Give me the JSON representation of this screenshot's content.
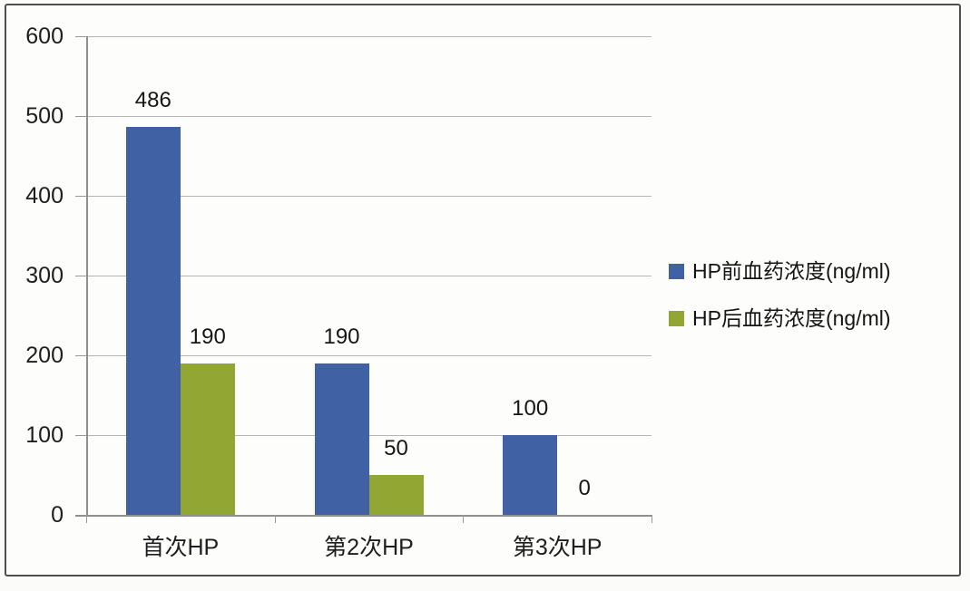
{
  "chart_data": {
    "type": "bar",
    "categories": [
      "首次HP",
      "第2次HP",
      "第3次HP"
    ],
    "series": [
      {
        "name": "HP前血药浓度(ng/ml)",
        "color": "#4161a5",
        "values": [
          486,
          190,
          100
        ]
      },
      {
        "name": "HP后血药浓度(ng/ml)",
        "color": "#92a733",
        "values": [
          190,
          50,
          0
        ]
      }
    ],
    "ylim": [
      0,
      600
    ],
    "ytick_step": 100,
    "ytick_labels": [
      "0",
      "100",
      "200",
      "300",
      "400",
      "500",
      "600"
    ],
    "value_labels": [
      [
        "486",
        "190",
        "100"
      ],
      [
        "190",
        "50",
        "0"
      ]
    ],
    "grid": true,
    "legend_position": "right"
  },
  "colors": {
    "gridline": "#b5b5b2",
    "axis": "#8f8f8c",
    "text": "#1e1e1e",
    "frame": "#4e4e4e",
    "background": "#fdfdfc"
  }
}
